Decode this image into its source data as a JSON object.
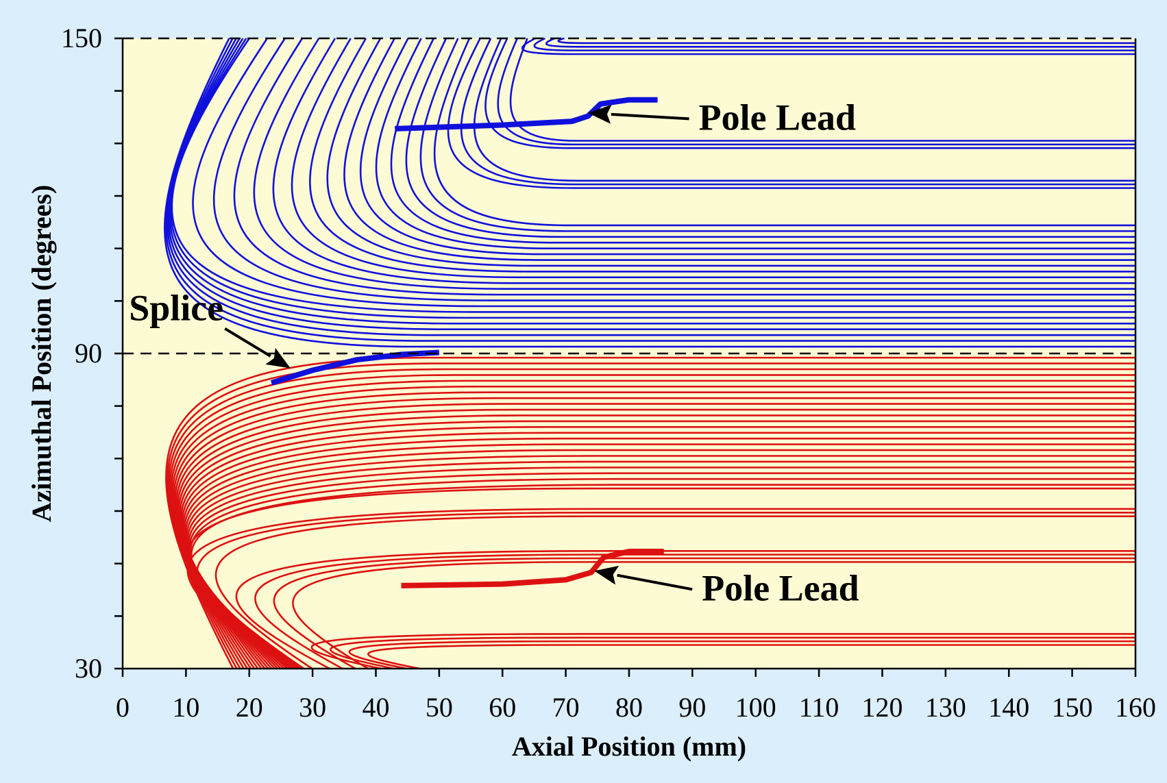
{
  "chart_data": {
    "type": "line",
    "xlabel": "Axial Position (mm)",
    "ylabel": "Azimuthal Position (degrees)",
    "xlim": [
      0,
      160
    ],
    "ylim": [
      30,
      150
    ],
    "x_ticks": [
      "0",
      "10",
      "20",
      "30",
      "40",
      "50",
      "60",
      "70",
      "80",
      "90",
      "100",
      "110",
      "120",
      "130",
      "140",
      "150",
      "160"
    ],
    "y_ticks": [
      "30",
      "90",
      "150"
    ],
    "reference_line": {
      "y": 90,
      "style": "dashed"
    },
    "grid": false,
    "colors": {
      "upper_coil": "#1010dd",
      "lower_coil": "#dd1111",
      "plot_background": "#fdfbd3",
      "page_background": "#dbeefc"
    },
    "series": [
      {
        "group": "upper",
        "turns": [
          {
            "y_straight": 149.1,
            "x_straight_start": 72.5,
            "x_nose": 68.3
          },
          {
            "y_straight": 148.4,
            "x_straight_start": 72.0,
            "x_nose": 66.2
          },
          {
            "y_straight": 147.7,
            "x_straight_start": 71.6,
            "x_nose": 64.1
          },
          {
            "y_straight": 147.0,
            "x_straight_start": 71.1,
            "x_nose": 62.0
          },
          {
            "y_straight": 130.5,
            "x_straight_start": 71.6,
            "x_nose": 59.8
          },
          {
            "y_straight": 129.8,
            "x_straight_start": 71.1,
            "x_nose": 57.6
          },
          {
            "y_straight": 129.1,
            "x_straight_start": 70.7,
            "x_nose": 55.4
          },
          {
            "y_straight": 122.9,
            "x_straight_start": 72.0,
            "x_nose": 53.2
          },
          {
            "y_straight": 122.2,
            "x_straight_start": 71.6,
            "x_nose": 50.9
          },
          {
            "y_straight": 121.5,
            "x_straight_start": 71.1,
            "x_nose": 48.6
          },
          {
            "y_straight": 114.4,
            "x_straight_start": 70.7,
            "x_nose": 46.2
          },
          {
            "y_straight": 113.3,
            "x_straight_start": 70.0,
            "x_nose": 43.8
          },
          {
            "y_straight": 112.2,
            "x_straight_start": 69.3,
            "x_nose": 41.3
          },
          {
            "y_straight": 111.1,
            "x_straight_start": 68.5,
            "x_nose": 38.7
          },
          {
            "y_straight": 110.0,
            "x_straight_start": 67.7,
            "x_nose": 36.1
          },
          {
            "y_straight": 108.9,
            "x_straight_start": 66.8,
            "x_nose": 33.4
          },
          {
            "y_straight": 107.8,
            "x_straight_start": 65.9,
            "x_nose": 30.6
          },
          {
            "y_straight": 106.7,
            "x_straight_start": 64.9,
            "x_nose": 27.7
          },
          {
            "y_straight": 105.6,
            "x_straight_start": 63.9,
            "x_nose": 24.7
          },
          {
            "y_straight": 104.5,
            "x_straight_start": 62.8,
            "x_nose": 21.6
          },
          {
            "y_straight": 103.4,
            "x_straight_start": 61.7,
            "x_nose": 18.4
          },
          {
            "y_straight": 102.3,
            "x_straight_start": 60.5,
            "x_nose": 15.1
          },
          {
            "y_straight": 101.2,
            "x_straight_start": 59.3,
            "x_nose": 11.7
          },
          {
            "y_straight": 100.1,
            "x_straight_start": 58.0,
            "x_nose": 8.2
          },
          {
            "y_straight": 99.0,
            "x_straight_start": 56.7,
            "x_nose": 4.6
          },
          {
            "y_straight": 97.9,
            "x_straight_start": 55.3,
            "x_nose": 1.0
          },
          {
            "y_straight": 96.8,
            "x_straight_start": 53.9,
            "x_nose": 1.0
          },
          {
            "y_straight": 95.7,
            "x_straight_start": 52.4,
            "x_nose": 1.0
          },
          {
            "y_straight": 94.6,
            "x_straight_start": 50.9,
            "x_nose": 1.0
          },
          {
            "y_straight": 93.5,
            "x_straight_start": 49.4,
            "x_nose": 1.0
          },
          {
            "y_straight": 92.4,
            "x_straight_start": 47.8,
            "x_nose": 1.0
          },
          {
            "y_straight": 91.3,
            "x_straight_start": 46.2,
            "x_nose": 1.0
          }
        ]
      },
      {
        "group": "lower",
        "turns": [
          {
            "y_straight": 89.2,
            "x_straight_start": 48.0,
            "x_nose": 1.0
          },
          {
            "y_straight": 88.1,
            "x_straight_start": 49.6,
            "x_nose": 1.0
          },
          {
            "y_straight": 87.0,
            "x_straight_start": 51.2,
            "x_nose": 1.0
          },
          {
            "y_straight": 85.9,
            "x_straight_start": 52.8,
            "x_nose": 1.0
          },
          {
            "y_straight": 84.8,
            "x_straight_start": 54.4,
            "x_nose": 1.0
          },
          {
            "y_straight": 83.7,
            "x_straight_start": 56.0,
            "x_nose": 1.0
          },
          {
            "y_straight": 82.6,
            "x_straight_start": 57.6,
            "x_nose": 1.0
          },
          {
            "y_straight": 81.5,
            "x_straight_start": 59.2,
            "x_nose": 1.0
          },
          {
            "y_straight": 80.4,
            "x_straight_start": 60.8,
            "x_nose": 1.0
          },
          {
            "y_straight": 79.3,
            "x_straight_start": 62.3,
            "x_nose": 1.0
          },
          {
            "y_straight": 78.2,
            "x_straight_start": 63.8,
            "x_nose": 1.0
          },
          {
            "y_straight": 77.1,
            "x_straight_start": 65.3,
            "x_nose": 1.0
          },
          {
            "y_straight": 76.0,
            "x_straight_start": 66.8,
            "x_nose": 1.0
          },
          {
            "y_straight": 74.9,
            "x_straight_start": 68.2,
            "x_nose": 1.0
          },
          {
            "y_straight": 73.8,
            "x_straight_start": 69.6,
            "x_nose": 1.0
          },
          {
            "y_straight": 72.7,
            "x_straight_start": 71.0,
            "x_nose": 1.0
          },
          {
            "y_straight": 71.6,
            "x_straight_start": 72.4,
            "x_nose": 1.0
          },
          {
            "y_straight": 70.5,
            "x_straight_start": 73.7,
            "x_nose": 1.0
          },
          {
            "y_straight": 69.4,
            "x_straight_start": 75.0,
            "x_nose": 1.0
          },
          {
            "y_straight": 68.3,
            "x_straight_start": 76.3,
            "x_nose": 1.0
          },
          {
            "y_straight": 67.2,
            "x_straight_start": 77.5,
            "x_nose": 1.0
          },
          {
            "y_straight": 66.1,
            "x_straight_start": 78.7,
            "x_nose": 1.0
          },
          {
            "y_straight": 65.0,
            "x_straight_start": 79.9,
            "x_nose": 1.0
          },
          {
            "y_straight": 64.3,
            "x_straight_start": 74.0,
            "x_nose": 1.0
          },
          {
            "y_straight": 60.4,
            "x_straight_start": 75.2,
            "x_nose": 1.0
          },
          {
            "y_straight": 59.7,
            "x_straight_start": 74.5,
            "x_nose": 2.8
          },
          {
            "y_straight": 59.0,
            "x_straight_start": 73.8,
            "x_nose": 6.3
          },
          {
            "y_straight": 52.4,
            "x_straight_start": 75.2,
            "x_nose": 9.8
          },
          {
            "y_straight": 51.7,
            "x_straight_start": 74.5,
            "x_nose": 13.3
          },
          {
            "y_straight": 51.0,
            "x_straight_start": 73.8,
            "x_nose": 16.8
          },
          {
            "y_straight": 50.3,
            "x_straight_start": 73.1,
            "x_nose": 20.3
          },
          {
            "y_straight": 36.6,
            "x_straight_start": 72.4,
            "x_nose": 23.8
          },
          {
            "y_straight": 35.9,
            "x_straight_start": 71.7,
            "x_nose": 27.3
          },
          {
            "y_straight": 35.2,
            "x_straight_start": 71.0,
            "x_nose": 30.8
          },
          {
            "y_straight": 34.5,
            "x_straight_start": 70.3,
            "x_nose": 34.3
          }
        ]
      }
    ],
    "leads": [
      {
        "group": "upper",
        "x": [
          43,
          60,
          71,
          73.5,
          75.5,
          80,
          84.5
        ],
        "y": [
          132.8,
          133.5,
          134.2,
          135.2,
          137.5,
          138.3,
          138.3
        ]
      },
      {
        "group": "splice",
        "x": [
          23.5,
          30,
          37,
          44,
          50
        ],
        "y": [
          84.4,
          86.8,
          88.8,
          89.8,
          90.2
        ]
      },
      {
        "group": "lower",
        "x": [
          44,
          60,
          70,
          74,
          76,
          80,
          85.5
        ],
        "y": [
          45.8,
          46.1,
          46.9,
          48.3,
          51.2,
          52.3,
          52.3
        ]
      }
    ],
    "annotations": [
      {
        "text": "Pole Lead",
        "x": 91,
        "y": 132.6,
        "arrow_to": [
          73.5,
          135.8
        ]
      },
      {
        "text": "Splice",
        "x": 1,
        "y": 96.3,
        "arrow_to": [
          26.5,
          87.2
        ]
      },
      {
        "text": "Pole Lead",
        "x": 91.5,
        "y": 43.0,
        "arrow_to": [
          74.5,
          48.6
        ]
      }
    ]
  }
}
